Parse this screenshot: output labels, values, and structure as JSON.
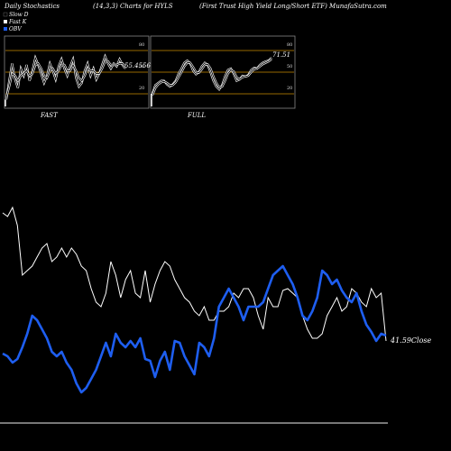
{
  "header": {
    "left": "Daily Stochastics",
    "middle": "(14,3,3) Charts for HYLS",
    "right": "(First Trust High Yield Long/Short ETF) MunafaSutra.com"
  },
  "legend": [
    {
      "label": "Slow  D",
      "color": "#000000"
    },
    {
      "label": "Fast K",
      "color": "#ffffff"
    },
    {
      "label": "OBV",
      "color": "#1e5ef0"
    }
  ],
  "colors": {
    "price_line": "#ffffff",
    "obv_line": "#1e5ef0",
    "level_line": "#c88c00",
    "panel_border": "#888888"
  },
  "chart_data": [
    {
      "type": "line",
      "caption": "FAST",
      "value_label": "55.4556",
      "ylim": [
        0,
        100
      ],
      "levels": [
        20,
        50,
        80
      ],
      "tick_labels": [
        "80",
        "50",
        "20"
      ],
      "series": [
        {
          "values": [
            12,
            38,
            62,
            40,
            28,
            55,
            45,
            60,
            38,
            52,
            70,
            60,
            48,
            35,
            45,
            62,
            52,
            40,
            58,
            68,
            55,
            45,
            58,
            68,
            42,
            30,
            35,
            52,
            62,
            45,
            55,
            40,
            48,
            60,
            72,
            62,
            55,
            62,
            58,
            68,
            60,
            55
          ]
        },
        {
          "values": [
            15,
            30,
            48,
            45,
            38,
            45,
            48,
            52,
            45,
            48,
            60,
            62,
            55,
            45,
            42,
            52,
            55,
            48,
            52,
            60,
            60,
            52,
            52,
            60,
            52,
            42,
            38,
            45,
            55,
            52,
            52,
            48,
            48,
            55,
            65,
            65,
            60,
            60,
            60,
            62,
            62,
            58
          ]
        }
      ]
    },
    {
      "type": "line",
      "caption": "FULL",
      "value_label": "71.51",
      "ylim": [
        0,
        100
      ],
      "levels": [
        20,
        50,
        80
      ],
      "tick_labels": [
        "80",
        "50",
        "20"
      ],
      "series": [
        {
          "values": [
            20,
            32,
            35,
            38,
            38,
            33,
            30,
            33,
            38,
            48,
            55,
            63,
            66,
            62,
            52,
            47,
            50,
            58,
            63,
            60,
            50,
            38,
            30,
            26,
            32,
            44,
            53,
            55,
            48,
            38,
            40,
            45,
            44,
            46,
            53,
            56,
            55,
            60,
            63,
            65,
            66,
            70
          ]
        },
        {
          "values": [
            18,
            28,
            33,
            36,
            37,
            35,
            32,
            32,
            36,
            43,
            50,
            58,
            63,
            63,
            57,
            50,
            49,
            54,
            60,
            61,
            55,
            44,
            35,
            29,
            30,
            38,
            48,
            53,
            51,
            43,
            40,
            43,
            44,
            45,
            50,
            54,
            55,
            58,
            61,
            63,
            65,
            68
          ]
        }
      ]
    },
    {
      "type": "line",
      "value_label": "41.59",
      "series_tail_label": "Close",
      "series": [
        {
          "values": [
            236,
            240,
            230,
            250,
            305,
            300,
            295,
            285,
            275,
            270,
            290,
            285,
            275,
            285,
            275,
            282,
            295,
            300,
            320,
            335,
            340,
            325,
            290,
            305,
            330,
            310,
            300,
            325,
            330,
            300,
            335,
            315,
            300,
            290,
            295,
            310,
            320,
            330,
            335,
            345,
            350,
            340,
            355,
            355,
            345,
            345,
            340,
            325,
            330,
            320,
            320,
            330,
            350,
            365,
            330,
            340,
            340,
            322,
            320,
            325,
            330,
            350,
            365,
            375,
            375,
            370,
            350,
            340,
            330,
            345,
            340,
            320,
            325,
            335,
            340,
            320,
            330,
            325,
            378
          ]
        },
        {
          "values": [
            392,
            395,
            402,
            398,
            385,
            370,
            350,
            355,
            365,
            375,
            390,
            395,
            390,
            402,
            410,
            425,
            435,
            430,
            420,
            410,
            395,
            380,
            395,
            370,
            380,
            385,
            378,
            385,
            375,
            398,
            400,
            418,
            400,
            390,
            410,
            378,
            380,
            395,
            405,
            415,
            380,
            385,
            395,
            375,
            340,
            330,
            320,
            330,
            340,
            355,
            340,
            340,
            340,
            335,
            320,
            305,
            300,
            295,
            305,
            315,
            330,
            350,
            355,
            345,
            330,
            300,
            305,
            315,
            310,
            322,
            330,
            335,
            325,
            345,
            360,
            368,
            378,
            370,
            372
          ]
        }
      ]
    }
  ]
}
